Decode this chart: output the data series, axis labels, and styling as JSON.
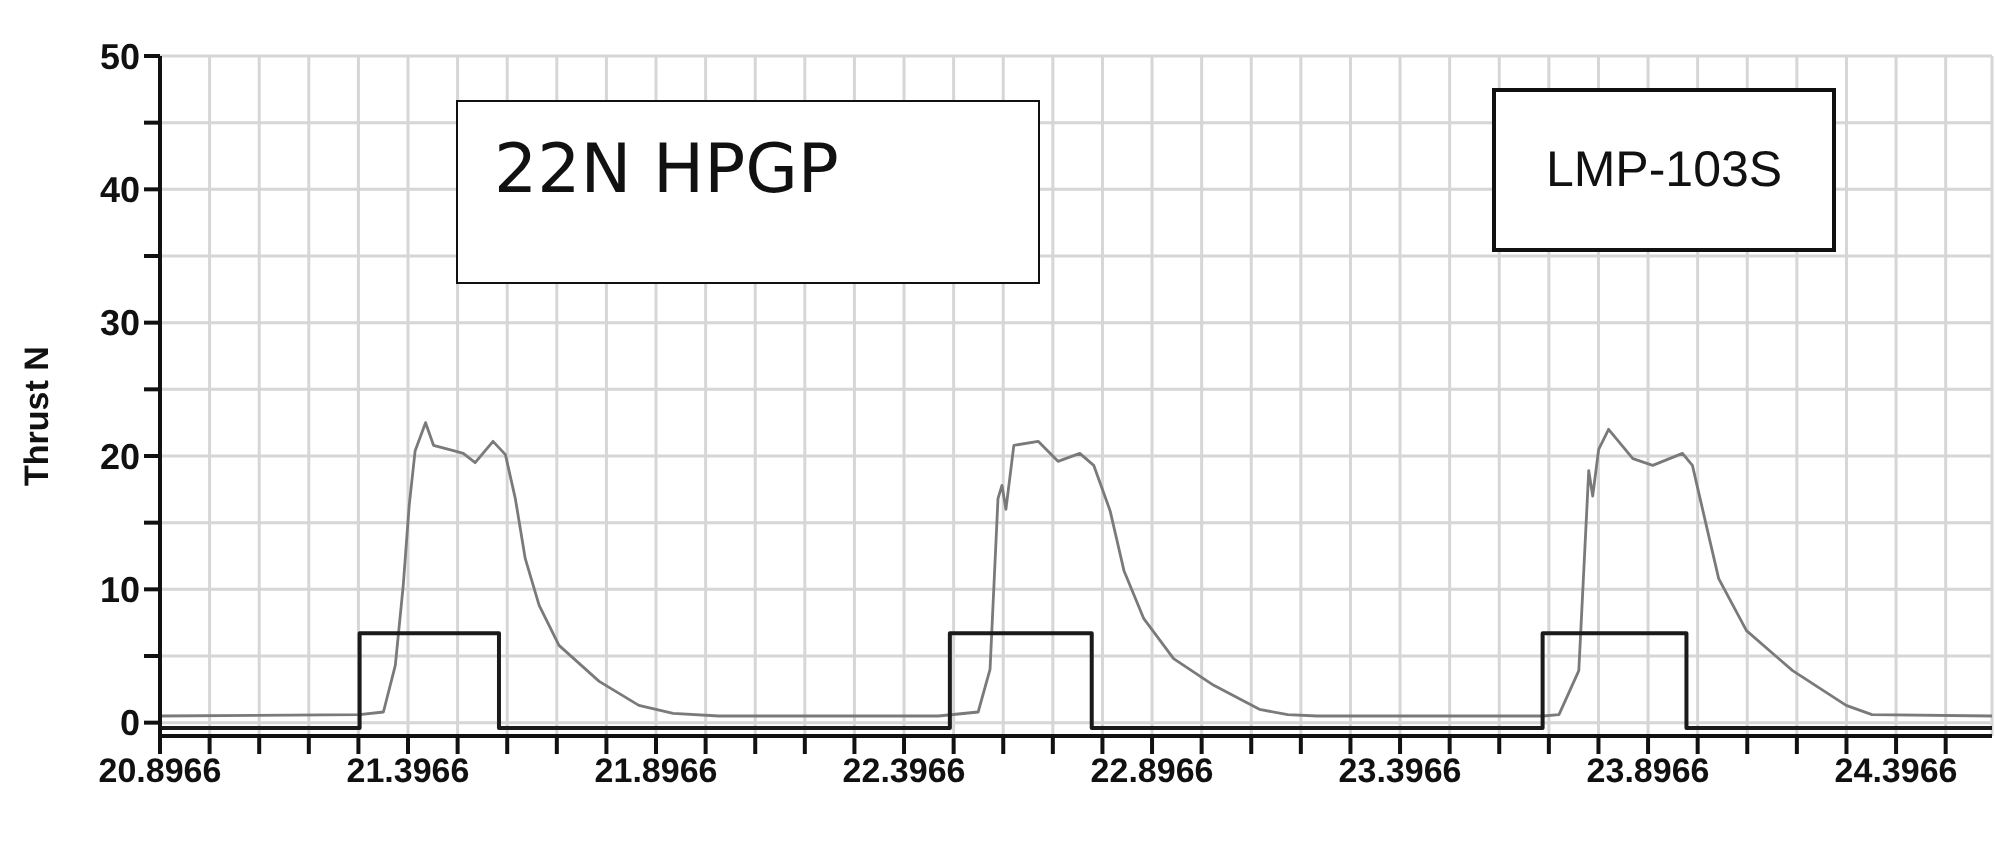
{
  "chart_data": {
    "type": "line",
    "ylabel": "Thrust N",
    "annotations": [
      "22N HPGP",
      "LMP-103S"
    ],
    "series": [
      {
        "color": "#7a7a7a",
        "x": [
          20.8966,
          21.299,
          21.347,
          21.371,
          21.387,
          21.399,
          21.411,
          21.432,
          21.448,
          21.488,
          21.508,
          21.532,
          21.568,
          21.593,
          21.613,
          21.633,
          21.661,
          21.701,
          21.782,
          21.862,
          21.931,
          22.023,
          22.466,
          22.546,
          22.57,
          22.586,
          22.594,
          22.602,
          22.618,
          22.667,
          22.707,
          22.751,
          22.779,
          22.812,
          22.84,
          22.88,
          22.94,
          23.021,
          23.113,
          23.17,
          23.23,
          23.685,
          23.717,
          23.757,
          23.777,
          23.785,
          23.797,
          23.817,
          23.866,
          23.906,
          23.966,
          23.986,
          24.014,
          24.039,
          24.095,
          24.188,
          24.296,
          24.348,
          24.59
        ],
        "values": [
          0.5,
          0.6,
          0.8,
          4.3,
          10.3,
          16.3,
          20.4,
          22.5,
          20.8,
          20.4,
          20.2,
          19.5,
          21.1,
          20.1,
          16.8,
          12.3,
          8.8,
          5.8,
          3.1,
          1.3,
          0.7,
          0.5,
          0.5,
          0.8,
          4.0,
          16.8,
          17.8,
          16.0,
          20.8,
          21.1,
          19.6,
          20.2,
          19.3,
          15.9,
          11.4,
          7.8,
          4.8,
          2.8,
          1.0,
          0.6,
          0.5,
          0.5,
          0.6,
          3.9,
          18.9,
          17.0,
          20.5,
          22.0,
          19.8,
          19.3,
          20.2,
          19.3,
          14.8,
          10.8,
          6.9,
          3.9,
          1.3,
          0.6,
          0.5
        ]
      },
      {
        "color": "#1a1a1a",
        "x": [
          20.8966,
          21.299,
          21.299,
          21.58,
          21.58,
          22.489,
          22.489,
          22.775,
          22.775,
          23.684,
          23.684,
          23.974,
          23.974,
          24.59
        ],
        "values": [
          -0.4,
          -0.4,
          6.7,
          6.7,
          -0.4,
          -0.4,
          6.7,
          6.7,
          -0.4,
          -0.4,
          6.7,
          6.7,
          -0.4,
          -0.4
        ]
      }
    ],
    "xlim": [
      20.8966,
      24.59
    ],
    "xticks": [
      20.8966,
      {
        "value": 20.9966,
        "label": null
      },
      {
        "value": 21.0966,
        "label": null
      },
      {
        "value": 21.1966,
        "label": null
      },
      {
        "value": 21.2966,
        "label": null
      },
      21.3966,
      {
        "value": 21.4966,
        "label": null
      },
      {
        "value": 21.5966,
        "label": null
      },
      {
        "value": 21.6966,
        "label": null
      },
      {
        "value": 21.7966,
        "label": null
      },
      21.8966,
      {
        "value": 21.9966,
        "label": null
      },
      {
        "value": 22.0966,
        "label": null
      },
      {
        "value": 22.1966,
        "label": null
      },
      {
        "value": 22.2966,
        "label": null
      },
      22.3966,
      {
        "value": 22.4966,
        "label": null
      },
      {
        "value": 22.5966,
        "label": null
      },
      {
        "value": 22.6966,
        "label": null
      },
      {
        "value": 22.7966,
        "label": null
      },
      22.8966,
      {
        "value": 22.9966,
        "label": null
      },
      {
        "value": 23.0966,
        "label": null
      },
      {
        "value": 23.1966,
        "label": null
      },
      {
        "value": 23.2966,
        "label": null
      },
      23.3966,
      {
        "value": 23.4966,
        "label": null
      },
      {
        "value": 23.5966,
        "label": null
      },
      {
        "value": 23.6966,
        "label": null
      },
      {
        "value": 23.7966,
        "label": null
      },
      23.8966,
      {
        "value": 23.9966,
        "label": null
      },
      {
        "value": 24.0966,
        "label": null
      },
      {
        "value": 24.1966,
        "label": null
      },
      {
        "value": 24.2966,
        "label": null
      },
      24.3966,
      {
        "value": 24.4966,
        "label": null
      }
    ],
    "ylim": [
      -1,
      50
    ],
    "yticks": [
      0,
      {
        "value": 5,
        "label": null
      },
      10,
      {
        "value": 15,
        "label": null
      },
      20,
      {
        "value": 25,
        "label": null
      },
      30,
      {
        "value": 35,
        "label": null
      },
      40,
      {
        "value": 45,
        "label": null
      },
      50
    ],
    "grid": true,
    "legend": false,
    "marker": "none",
    "line_style": "solid"
  }
}
